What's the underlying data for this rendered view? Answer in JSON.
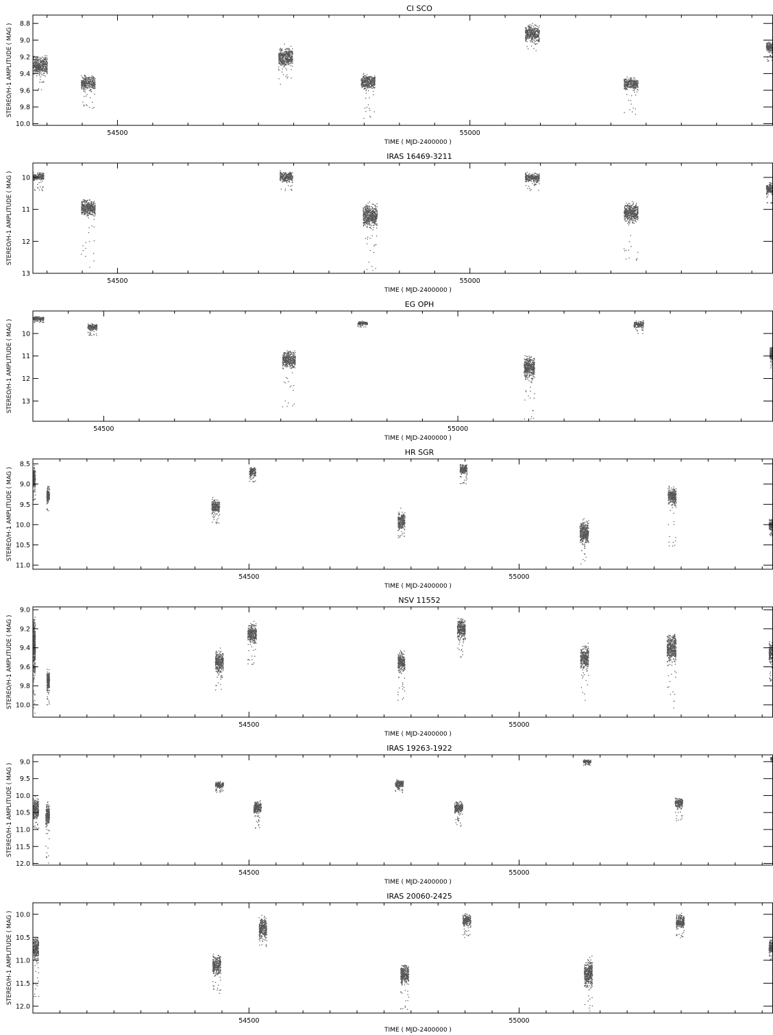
{
  "figure": {
    "point_color": "#555555",
    "axis_color": "#000000"
  },
  "chart_data": [
    {
      "type": "scatter",
      "title": "CI SCO",
      "xlabel": "TIME ( MJD-2400000  )",
      "ylabel": "STEREO/H-1  AMPLITUDE ( MAG )",
      "xlim": [
        54380,
        55430
      ],
      "ylim": [
        10.02,
        8.7
      ],
      "y_inverted": true,
      "xticks": [
        54500,
        55000
      ],
      "yticks": [
        8.8,
        9.0,
        9.2,
        9.4,
        9.6,
        9.8,
        10.0
      ],
      "ytick_labels": [
        "8.8",
        "9.0",
        "9.2",
        "9.4",
        "9.6",
        "9.8",
        "10.0"
      ],
      "grid": false,
      "clusters": [
        {
          "x": [
            54380,
            54400
          ],
          "y": [
            9.15,
            9.45
          ],
          "tail": 9.6
        },
        {
          "x": [
            54448,
            54468
          ],
          "y": [
            9.4,
            9.62
          ],
          "tail": 9.82
        },
        {
          "x": [
            54728,
            54748
          ],
          "y": [
            9.05,
            9.35
          ],
          "tail": 9.55
        },
        {
          "x": [
            54845,
            54865
          ],
          "y": [
            9.38,
            9.62
          ],
          "tail": 9.95
        },
        {
          "x": [
            55078,
            55098
          ],
          "y": [
            8.78,
            9.05
          ],
          "tail": 9.15
        },
        {
          "x": [
            55218,
            55238
          ],
          "y": [
            9.42,
            9.62
          ],
          "tail": 9.9
        },
        {
          "x": [
            55420,
            55430
          ],
          "y": [
            9.0,
            9.15
          ],
          "tail": 9.25
        }
      ]
    },
    {
      "type": "scatter",
      "title": "IRAS 16469-3211",
      "xlabel": "TIME ( MJD-2400000  )",
      "ylabel": "STEREO/H-1  AMPLITUDE ( MAG )",
      "xlim": [
        54380,
        55430
      ],
      "ylim": [
        13.0,
        9.55
      ],
      "y_inverted": true,
      "xticks": [
        54500,
        55000
      ],
      "yticks": [
        10,
        11,
        12,
        13
      ],
      "ytick_labels": [
        "10",
        "11",
        "12",
        "13"
      ],
      "grid": false,
      "clusters": [
        {
          "x": [
            54380,
            54395
          ],
          "y": [
            9.8,
            10.15
          ],
          "tail": 10.4
        },
        {
          "x": [
            54448,
            54468
          ],
          "y": [
            10.6,
            11.3
          ],
          "tail": 12.8
        },
        {
          "x": [
            54730,
            54748
          ],
          "y": [
            9.75,
            10.2
          ],
          "tail": 10.4
        },
        {
          "x": [
            54848,
            54868
          ],
          "y": [
            10.7,
            11.7
          ],
          "tail": 12.95
        },
        {
          "x": [
            55078,
            55098
          ],
          "y": [
            9.8,
            10.2
          ],
          "tail": 10.4
        },
        {
          "x": [
            55218,
            55238
          ],
          "y": [
            10.7,
            11.5
          ],
          "tail": 12.6
        },
        {
          "x": [
            55420,
            55430
          ],
          "y": [
            10.1,
            10.6
          ],
          "tail": 10.8
        }
      ]
    },
    {
      "type": "scatter",
      "title": "EG OPH",
      "xlabel": "TIME ( MJD-2400000  )",
      "ylabel": "STEREO/H-1  AMPLITUDE ( MAG )",
      "xlim": [
        54400,
        55445
      ],
      "ylim": [
        13.9,
        9.0
      ],
      "y_inverted": true,
      "xticks": [
        54500,
        55000
      ],
      "yticks": [
        10,
        11,
        12,
        13
      ],
      "ytick_labels": [
        "10",
        "11",
        "12",
        "13"
      ],
      "grid": false,
      "clusters": [
        {
          "x": [
            54400,
            54415
          ],
          "y": [
            9.2,
            9.45
          ],
          "tail": 9.5
        },
        {
          "x": [
            54477,
            54490
          ],
          "y": [
            9.5,
            9.9
          ],
          "tail": 10.15
        },
        {
          "x": [
            54752,
            54770
          ],
          "y": [
            10.6,
            11.7
          ],
          "tail": 13.3
        },
        {
          "x": [
            54858,
            54872
          ],
          "y": [
            9.4,
            9.65
          ],
          "tail": 9.7
        },
        {
          "x": [
            55093,
            55108
          ],
          "y": [
            10.8,
            12.2
          ],
          "tail": 13.8
        },
        {
          "x": [
            55248,
            55262
          ],
          "y": [
            9.4,
            9.75
          ],
          "tail": 10.0
        },
        {
          "x": [
            55440,
            55445
          ],
          "y": [
            10.5,
            11.3
          ],
          "tail": 11.6
        }
      ]
    },
    {
      "type": "scatter",
      "title": "HR SGR",
      "xlabel": "TIME ( MJD-2400000  )",
      "ylabel": "STEREO/H-1  AMPLITUDE ( MAG )",
      "xlim": [
        54100,
        55470
      ],
      "ylim": [
        11.1,
        8.38
      ],
      "y_inverted": true,
      "xticks": [
        54500,
        55000
      ],
      "yticks": [
        8.5,
        9.0,
        9.5,
        10.0,
        10.5,
        11.0
      ],
      "ytick_labels": [
        "8.5",
        "9.0",
        "9.5",
        "10.0",
        "10.5",
        "11.0"
      ],
      "grid": false,
      "clusters": [
        {
          "x": [
            54100,
            54103
          ],
          "y": [
            8.5,
            9.2
          ],
          "tail": 9.4
        },
        {
          "x": [
            54125,
            54130
          ],
          "y": [
            9.0,
            9.5
          ],
          "tail": 9.65
        },
        {
          "x": [
            54430,
            54445
          ],
          "y": [
            9.3,
            9.8
          ],
          "tail": 10.0
        },
        {
          "x": [
            54500,
            54512
          ],
          "y": [
            8.55,
            8.85
          ],
          "tail": 8.95
        },
        {
          "x": [
            54775,
            54788
          ],
          "y": [
            9.6,
            10.2
          ],
          "tail": 10.35
        },
        {
          "x": [
            54890,
            54903
          ],
          "y": [
            8.45,
            8.8
          ],
          "tail": 9.0
        },
        {
          "x": [
            55112,
            55128
          ],
          "y": [
            9.8,
            10.6
          ],
          "tail": 11.05
        },
        {
          "x": [
            55275,
            55290
          ],
          "y": [
            9.0,
            9.6
          ],
          "tail": 10.6
        },
        {
          "x": [
            55462,
            55470
          ],
          "y": [
            9.8,
            10.2
          ],
          "tail": 10.3
        }
      ]
    },
    {
      "type": "scatter",
      "title": "NSV 11552",
      "xlabel": "TIME ( MJD-2400000  )",
      "ylabel": "STEREO/H-1  AMPLITUDE ( MAG )",
      "xlim": [
        54100,
        55470
      ],
      "ylim": [
        10.13,
        8.97
      ],
      "y_inverted": true,
      "xticks": [
        54500,
        55000
      ],
      "yticks": [
        9.0,
        9.2,
        9.4,
        9.6,
        9.8,
        10.0
      ],
      "ytick_labels": [
        "9.0",
        "9.2",
        "9.4",
        "9.6",
        "9.8",
        "10.0"
      ],
      "grid": false,
      "clusters": [
        {
          "x": [
            54100,
            54103
          ],
          "y": [
            9.0,
            9.8
          ],
          "tail": 10.1
        },
        {
          "x": [
            54125,
            54130
          ],
          "y": [
            9.6,
            9.9
          ],
          "tail": 10.0
        },
        {
          "x": [
            54437,
            54452
          ],
          "y": [
            9.4,
            9.7
          ],
          "tail": 9.85
        },
        {
          "x": [
            54497,
            54513
          ],
          "y": [
            9.1,
            9.4
          ],
          "tail": 9.62
        },
        {
          "x": [
            54775,
            54788
          ],
          "y": [
            9.4,
            9.7
          ],
          "tail": 9.95
        },
        {
          "x": [
            54885,
            54900
          ],
          "y": [
            9.05,
            9.35
          ],
          "tail": 9.5
        },
        {
          "x": [
            55113,
            55128
          ],
          "y": [
            9.35,
            9.65
          ],
          "tail": 9.95
        },
        {
          "x": [
            55273,
            55290
          ],
          "y": [
            9.2,
            9.6
          ],
          "tail": 10.05
        },
        {
          "x": [
            55462,
            55470
          ],
          "y": [
            9.3,
            9.6
          ],
          "tail": 9.75
        }
      ]
    },
    {
      "type": "scatter",
      "title": "IRAS 19263-1922",
      "xlabel": "TIME ( MJD-2400000  )",
      "ylabel": "STEREO/H-1  AMPLITUDE ( MAG )",
      "xlim": [
        54100,
        55470
      ],
      "ylim": [
        12.05,
        8.8
      ],
      "y_inverted": true,
      "xticks": [
        54500,
        55000
      ],
      "yticks": [
        9.0,
        9.5,
        10.0,
        10.5,
        11.0,
        11.5,
        12.0
      ],
      "ytick_labels": [
        "9.0",
        "9.5",
        "10.0",
        "10.5",
        "11.0",
        "11.5",
        "12.0"
      ],
      "grid": false,
      "clusters": [
        {
          "x": [
            54100,
            54110
          ],
          "y": [
            10.0,
            10.8
          ],
          "tail": 11.0
        },
        {
          "x": [
            54123,
            54130
          ],
          "y": [
            10.1,
            11.0
          ],
          "tail": 12.0
        },
        {
          "x": [
            54437,
            54452
          ],
          "y": [
            9.55,
            9.8
          ],
          "tail": 9.9
        },
        {
          "x": [
            54508,
            54522
          ],
          "y": [
            10.1,
            10.6
          ],
          "tail": 10.95
        },
        {
          "x": [
            54770,
            54785
          ],
          "y": [
            9.5,
            9.8
          ],
          "tail": 9.9
        },
        {
          "x": [
            54880,
            54895
          ],
          "y": [
            10.1,
            10.6
          ],
          "tail": 10.9
        },
        {
          "x": [
            55118,
            55132
          ],
          "y": [
            8.92,
            9.05
          ],
          "tail": 9.1
        },
        {
          "x": [
            55288,
            55302
          ],
          "y": [
            10.0,
            10.4
          ],
          "tail": 10.75
        },
        {
          "x": [
            55465,
            55470
          ],
          "y": [
            8.85,
            8.95
          ],
          "tail": 9.0
        }
      ]
    },
    {
      "type": "scatter",
      "title": "IRAS 20060-2425",
      "xlabel": "TIME ( MJD-2400000  )",
      "ylabel": "STEREO/H-1  AMPLITUDE ( MAG )",
      "xlim": [
        54100,
        55470
      ],
      "ylim": [
        12.15,
        9.75
      ],
      "y_inverted": true,
      "xticks": [
        54500,
        55000
      ],
      "yticks": [
        10.0,
        10.5,
        11.0,
        11.5,
        12.0
      ],
      "ytick_labels": [
        "10.0",
        "10.5",
        "11.0",
        "11.5",
        "12.0"
      ],
      "grid": false,
      "clusters": [
        {
          "x": [
            54100,
            54110
          ],
          "y": [
            10.4,
            11.1
          ],
          "tail": 11.8
        },
        {
          "x": [
            54432,
            54447
          ],
          "y": [
            10.8,
            11.4
          ],
          "tail": 11.8
        },
        {
          "x": [
            54518,
            54532
          ],
          "y": [
            10.0,
            10.6
          ],
          "tail": 10.7
        },
        {
          "x": [
            54780,
            54795
          ],
          "y": [
            11.0,
            11.6
          ],
          "tail": 12.1
        },
        {
          "x": [
            54895,
            54910
          ],
          "y": [
            9.95,
            10.3
          ],
          "tail": 10.5
        },
        {
          "x": [
            55120,
            55135
          ],
          "y": [
            10.9,
            11.7
          ],
          "tail": 12.15
        },
        {
          "x": [
            55290,
            55305
          ],
          "y": [
            9.95,
            10.35
          ],
          "tail": 10.5
        },
        {
          "x": [
            55462,
            55470
          ],
          "y": [
            10.5,
            10.9
          ],
          "tail": 11.0
        }
      ]
    }
  ]
}
